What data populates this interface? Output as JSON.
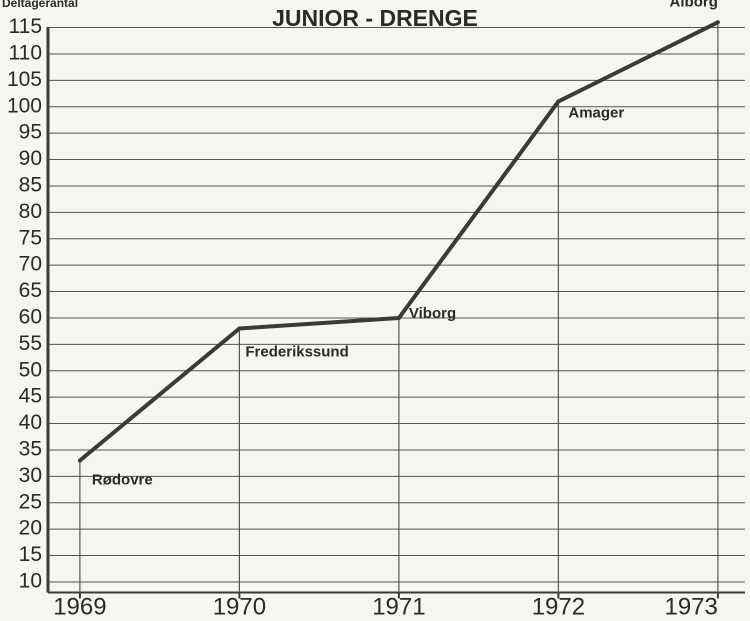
{
  "chart_data": {
    "type": "line",
    "title": "JUNIOR - DRENGE",
    "ylabel": "Deltagerantal",
    "x": [
      1969,
      1970,
      1971,
      1972,
      1973
    ],
    "point_labels": [
      "Rødovre",
      "Frederikssund",
      "Viborg",
      "Amager",
      "Alborg"
    ],
    "series": [
      {
        "name": "Junior - Drenge",
        "color": "#3a3a3a",
        "values": [
          33,
          58,
          60,
          101,
          116
        ]
      }
    ],
    "xlim": [
      1968.8,
      1973.17
    ],
    "xticks": [
      1969,
      1970,
      1971,
      1972,
      1973
    ],
    "ylim": [
      8,
      117
    ],
    "yticks": [
      10,
      15,
      20,
      25,
      30,
      35,
      40,
      45,
      50,
      55,
      60,
      65,
      70,
      75,
      80,
      85,
      90,
      95,
      100,
      105,
      110,
      115
    ],
    "grid": true
  }
}
